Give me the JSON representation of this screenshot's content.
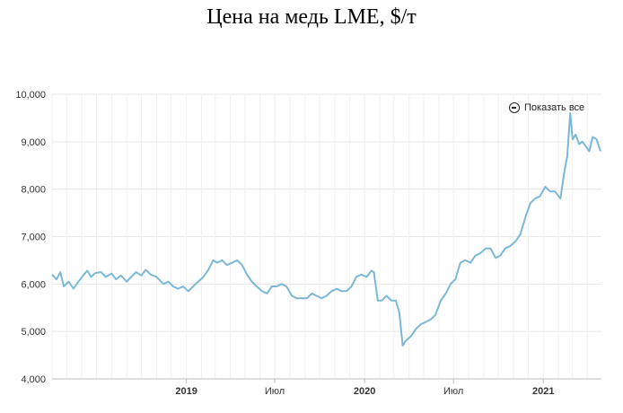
{
  "chart_data": {
    "type": "line",
    "title": "Цена на медь LME, $/т",
    "xlabel": "",
    "ylabel": "",
    "ylim": [
      4000,
      10000
    ],
    "y_ticks": [
      "10,000",
      "9,000",
      "8,000",
      "7,000",
      "6,000",
      "5,000",
      "4,000"
    ],
    "x_ticks": [
      {
        "label": "2019",
        "date": "2019-01-01",
        "bold": true
      },
      {
        "label": "Июл",
        "date": "2019-07-01",
        "bold": false
      },
      {
        "label": "2020",
        "date": "2020-01-01",
        "bold": true
      },
      {
        "label": "Июл",
        "date": "2020-07-01",
        "bold": false
      },
      {
        "label": "2021",
        "date": "2021-01-01",
        "bold": true
      }
    ],
    "x_range": [
      "2018-04-01",
      "2021-04-30"
    ],
    "line_color": "#7ab8d6",
    "grid": true,
    "series": [
      {
        "points": [
          [
            "2018-04-01",
            6200
          ],
          [
            "2018-04-10",
            6100
          ],
          [
            "2018-04-18",
            6250
          ],
          [
            "2018-04-25",
            5950
          ],
          [
            "2018-05-05",
            6050
          ],
          [
            "2018-05-15",
            5900
          ],
          [
            "2018-05-25",
            6050
          ],
          [
            "2018-06-05",
            6200
          ],
          [
            "2018-06-12",
            6280
          ],
          [
            "2018-06-20",
            6150
          ],
          [
            "2018-06-28",
            6230
          ],
          [
            "2018-07-10",
            6250
          ],
          [
            "2018-07-20",
            6150
          ],
          [
            "2018-08-01",
            6220
          ],
          [
            "2018-08-10",
            6100
          ],
          [
            "2018-08-20",
            6180
          ],
          [
            "2018-09-01",
            6050
          ],
          [
            "2018-09-10",
            6150
          ],
          [
            "2018-09-20",
            6250
          ],
          [
            "2018-10-01",
            6180
          ],
          [
            "2018-10-10",
            6300
          ],
          [
            "2018-10-20",
            6200
          ],
          [
            "2018-11-01",
            6150
          ],
          [
            "2018-11-15",
            6000
          ],
          [
            "2018-11-25",
            6050
          ],
          [
            "2018-12-05",
            5950
          ],
          [
            "2018-12-15",
            5900
          ],
          [
            "2018-12-25",
            5950
          ],
          [
            "2019-01-05",
            5850
          ],
          [
            "2019-01-15",
            5950
          ],
          [
            "2019-01-25",
            6050
          ],
          [
            "2019-02-05",
            6150
          ],
          [
            "2019-02-15",
            6300
          ],
          [
            "2019-02-25",
            6500
          ],
          [
            "2019-03-05",
            6450
          ],
          [
            "2019-03-15",
            6500
          ],
          [
            "2019-03-25",
            6400
          ],
          [
            "2019-04-05",
            6450
          ],
          [
            "2019-04-15",
            6500
          ],
          [
            "2019-04-25",
            6400
          ],
          [
            "2019-05-05",
            6200
          ],
          [
            "2019-05-15",
            6050
          ],
          [
            "2019-05-25",
            5950
          ],
          [
            "2019-06-05",
            5850
          ],
          [
            "2019-06-15",
            5800
          ],
          [
            "2019-06-25",
            5950
          ],
          [
            "2019-07-05",
            5950
          ],
          [
            "2019-07-15",
            6000
          ],
          [
            "2019-07-25",
            5950
          ],
          [
            "2019-08-05",
            5750
          ],
          [
            "2019-08-15",
            5700
          ],
          [
            "2019-08-25",
            5700
          ],
          [
            "2019-09-05",
            5700
          ],
          [
            "2019-09-15",
            5800
          ],
          [
            "2019-09-25",
            5750
          ],
          [
            "2019-10-05",
            5700
          ],
          [
            "2019-10-15",
            5750
          ],
          [
            "2019-10-25",
            5850
          ],
          [
            "2019-11-05",
            5900
          ],
          [
            "2019-11-15",
            5850
          ],
          [
            "2019-11-25",
            5850
          ],
          [
            "2019-12-05",
            5950
          ],
          [
            "2019-12-15",
            6150
          ],
          [
            "2019-12-25",
            6200
          ],
          [
            "2020-01-05",
            6150
          ],
          [
            "2020-01-15",
            6280
          ],
          [
            "2020-01-20",
            6250
          ],
          [
            "2020-01-28",
            5650
          ],
          [
            "2020-02-05",
            5650
          ],
          [
            "2020-02-15",
            5750
          ],
          [
            "2020-02-25",
            5650
          ],
          [
            "2020-03-05",
            5650
          ],
          [
            "2020-03-12",
            5400
          ],
          [
            "2020-03-19",
            4700
          ],
          [
            "2020-03-25",
            4800
          ],
          [
            "2020-04-05",
            4900
          ],
          [
            "2020-04-15",
            5050
          ],
          [
            "2020-04-25",
            5150
          ],
          [
            "2020-05-05",
            5200
          ],
          [
            "2020-05-15",
            5250
          ],
          [
            "2020-05-25",
            5350
          ],
          [
            "2020-06-05",
            5650
          ],
          [
            "2020-06-15",
            5800
          ],
          [
            "2020-06-25",
            6000
          ],
          [
            "2020-07-05",
            6100
          ],
          [
            "2020-07-15",
            6450
          ],
          [
            "2020-07-25",
            6500
          ],
          [
            "2020-08-05",
            6450
          ],
          [
            "2020-08-15",
            6600
          ],
          [
            "2020-08-25",
            6650
          ],
          [
            "2020-09-05",
            6750
          ],
          [
            "2020-09-15",
            6750
          ],
          [
            "2020-09-25",
            6550
          ],
          [
            "2020-10-05",
            6600
          ],
          [
            "2020-10-15",
            6750
          ],
          [
            "2020-10-25",
            6800
          ],
          [
            "2020-11-05",
            6900
          ],
          [
            "2020-11-15",
            7050
          ],
          [
            "2020-11-25",
            7400
          ],
          [
            "2020-12-05",
            7700
          ],
          [
            "2020-12-15",
            7800
          ],
          [
            "2020-12-25",
            7850
          ],
          [
            "2021-01-05",
            8050
          ],
          [
            "2021-01-15",
            7950
          ],
          [
            "2021-01-25",
            7950
          ],
          [
            "2021-02-05",
            7800
          ],
          [
            "2021-02-12",
            8300
          ],
          [
            "2021-02-19",
            8700
          ],
          [
            "2021-02-25",
            9600
          ],
          [
            "2021-03-02",
            9050
          ],
          [
            "2021-03-08",
            9150
          ],
          [
            "2021-03-15",
            8950
          ],
          [
            "2021-03-22",
            9000
          ],
          [
            "2021-03-29",
            8900
          ],
          [
            "2021-04-05",
            8800
          ],
          [
            "2021-04-12",
            9100
          ],
          [
            "2021-04-20",
            9050
          ],
          [
            "2021-04-28",
            8800
          ]
        ]
      }
    ]
  },
  "controls": {
    "reset_zoom_label": "Показать все",
    "reset_zoom_icon": "zoom-out-icon"
  }
}
